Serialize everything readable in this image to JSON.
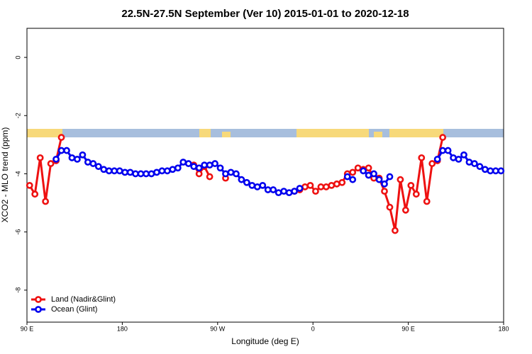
{
  "chart_data": {
    "type": "line",
    "title": "22.5N-27.5N September (Ver 10)   2015-01-01 to 2020-12-18",
    "xlabel": "Longitude (deg E)",
    "ylabel": "XCO2 - MLO trend (ppm)",
    "xlim": [
      90,
      540
    ],
    "ylim": [
      -9.1,
      1
    ],
    "xticks": [
      {
        "value": 90,
        "label": "90 E"
      },
      {
        "value": 180,
        "label": "180"
      },
      {
        "value": 270,
        "label": "90 W"
      },
      {
        "value": 360,
        "label": "0"
      },
      {
        "value": 450,
        "label": "90 E"
      },
      {
        "value": 540,
        "label": "180"
      }
    ],
    "yticks": [
      0,
      -2,
      -4,
      -6,
      -8
    ],
    "legend": "bottom-left",
    "x": [
      92.5,
      97.5,
      102.5,
      107.5,
      112.5,
      117.5,
      122.5,
      127.5,
      132.5,
      137.5,
      142.5,
      147.5,
      152.5,
      157.5,
      162.5,
      167.5,
      172.5,
      177.5,
      182.5,
      187.5,
      192.5,
      197.5,
      202.5,
      207.5,
      212.5,
      217.5,
      222.5,
      227.5,
      232.5,
      237.5,
      242.5,
      247.5,
      252.5,
      257.5,
      262.5,
      267.5,
      272.5,
      277.5,
      282.5,
      287.5,
      292.5,
      297.5,
      302.5,
      307.5,
      312.5,
      317.5,
      322.5,
      327.5,
      332.5,
      337.5,
      342.5,
      347.5,
      352.5,
      357.5,
      362.5,
      367.5,
      372.5,
      377.5,
      382.5,
      387.5,
      392.5,
      397.5,
      402.5,
      407.5,
      412.5,
      417.5,
      422.5,
      427.5,
      432.5,
      437.5,
      442.5,
      447.5,
      452.5,
      457.5,
      462.5,
      467.5,
      472.5,
      477.5,
      482.5,
      487.5,
      492.5,
      497.5,
      502.5,
      507.5,
      512.5,
      517.5,
      522.5,
      527.5,
      532.5,
      537.5
    ],
    "series": [
      {
        "name": "Land (Nadir&Glint)",
        "color": "#ee1111",
        "values": [
          -4.4,
          -4.7,
          -3.45,
          -4.95,
          -3.65,
          -3.55,
          -2.75,
          null,
          null,
          null,
          null,
          null,
          null,
          null,
          null,
          null,
          null,
          null,
          null,
          null,
          null,
          null,
          null,
          null,
          null,
          null,
          null,
          null,
          null,
          null,
          null,
          -3.7,
          -4.0,
          -3.75,
          -4.1,
          null,
          null,
          -4.15,
          null,
          null,
          null,
          null,
          null,
          null,
          null,
          null,
          null,
          null,
          null,
          null,
          -4.6,
          -4.55,
          -4.45,
          -4.4,
          -4.6,
          -4.45,
          -4.45,
          -4.4,
          -4.35,
          -4.3,
          -4.0,
          -3.95,
          -3.8,
          -3.85,
          -3.8,
          -4.15,
          -4.15,
          -4.6,
          -5.15,
          -5.95,
          -4.2,
          -5.25,
          -4.4,
          -4.7,
          -3.45,
          -4.95,
          -3.65,
          -3.55,
          -2.75,
          null,
          null,
          null,
          null,
          null,
          null,
          null,
          null,
          null,
          null,
          null
        ]
      },
      {
        "name": "Ocean (Glint)",
        "color": "#0000ee",
        "values": [
          null,
          null,
          null,
          null,
          null,
          -3.5,
          -3.2,
          -3.2,
          -3.45,
          -3.5,
          -3.35,
          -3.6,
          -3.65,
          -3.75,
          -3.85,
          -3.9,
          -3.9,
          -3.9,
          -3.95,
          -3.95,
          -4.0,
          -4.0,
          -4.0,
          -4.0,
          -3.95,
          -3.9,
          -3.9,
          -3.85,
          -3.8,
          -3.6,
          -3.65,
          -3.75,
          -3.8,
          -3.7,
          -3.7,
          -3.65,
          -3.8,
          -4.0,
          -3.95,
          -4.0,
          -4.2,
          -4.3,
          -4.4,
          -4.45,
          -4.4,
          -4.55,
          -4.55,
          -4.65,
          -4.6,
          -4.65,
          -4.6,
          -4.5,
          null,
          null,
          null,
          null,
          null,
          null,
          null,
          null,
          -4.1,
          -4.2,
          null,
          -3.9,
          -4.05,
          -4.0,
          -4.2,
          -4.35,
          -4.1,
          null,
          null,
          null,
          null,
          null,
          null,
          null,
          null,
          -3.5,
          -3.2,
          -3.2,
          -3.45,
          -3.5,
          -3.35,
          -3.6,
          -3.65,
          -3.75,
          -3.85,
          -3.9,
          -3.9,
          -3.9
        ]
      }
    ]
  }
}
